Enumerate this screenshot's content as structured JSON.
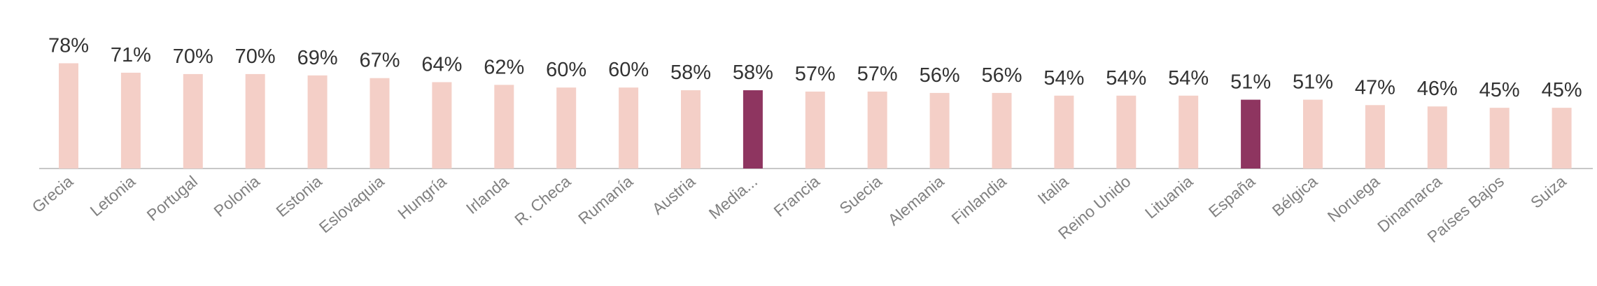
{
  "chart_data": {
    "type": "bar",
    "categories": [
      "Grecia",
      "Letonia",
      "Portugal",
      "Polonia",
      "Estonia",
      "Eslovaquia",
      "Hungría",
      "Irlanda",
      "R. Checa",
      "Rumanía",
      "Austria",
      "Media...",
      "Francia",
      "Suecia",
      "Alemania",
      "Finlandia",
      "Italia",
      "Reino Unido",
      "Lituania",
      "España",
      "Bélgica",
      "Noruega",
      "Dinamarca",
      "Países Bajos",
      "Suiza"
    ],
    "values": [
      78,
      71,
      70,
      70,
      69,
      67,
      64,
      62,
      60,
      60,
      58,
      58,
      57,
      57,
      56,
      56,
      54,
      54,
      54,
      51,
      51,
      47,
      46,
      45,
      45
    ],
    "value_labels": [
      "78%",
      "71%",
      "70%",
      "70%",
      "69%",
      "67%",
      "64%",
      "62%",
      "60%",
      "60%",
      "58%",
      "58%",
      "57%",
      "57%",
      "56%",
      "56%",
      "54%",
      "54%",
      "54%",
      "51%",
      "51%",
      "47%",
      "46%",
      "45%",
      "45%"
    ],
    "colors": [
      "#f4cfc7",
      "#f4cfc7",
      "#f4cfc7",
      "#f4cfc7",
      "#f4cfc7",
      "#f4cfc7",
      "#f4cfc7",
      "#f4cfc7",
      "#f4cfc7",
      "#f4cfc7",
      "#f4cfc7",
      "#8e3560",
      "#f4cfc7",
      "#f4cfc7",
      "#f4cfc7",
      "#f4cfc7",
      "#f4cfc7",
      "#f4cfc7",
      "#f4cfc7",
      "#8e3560",
      "#f4cfc7",
      "#f4cfc7",
      "#f4cfc7",
      "#f4cfc7",
      "#f4cfc7"
    ]
  }
}
